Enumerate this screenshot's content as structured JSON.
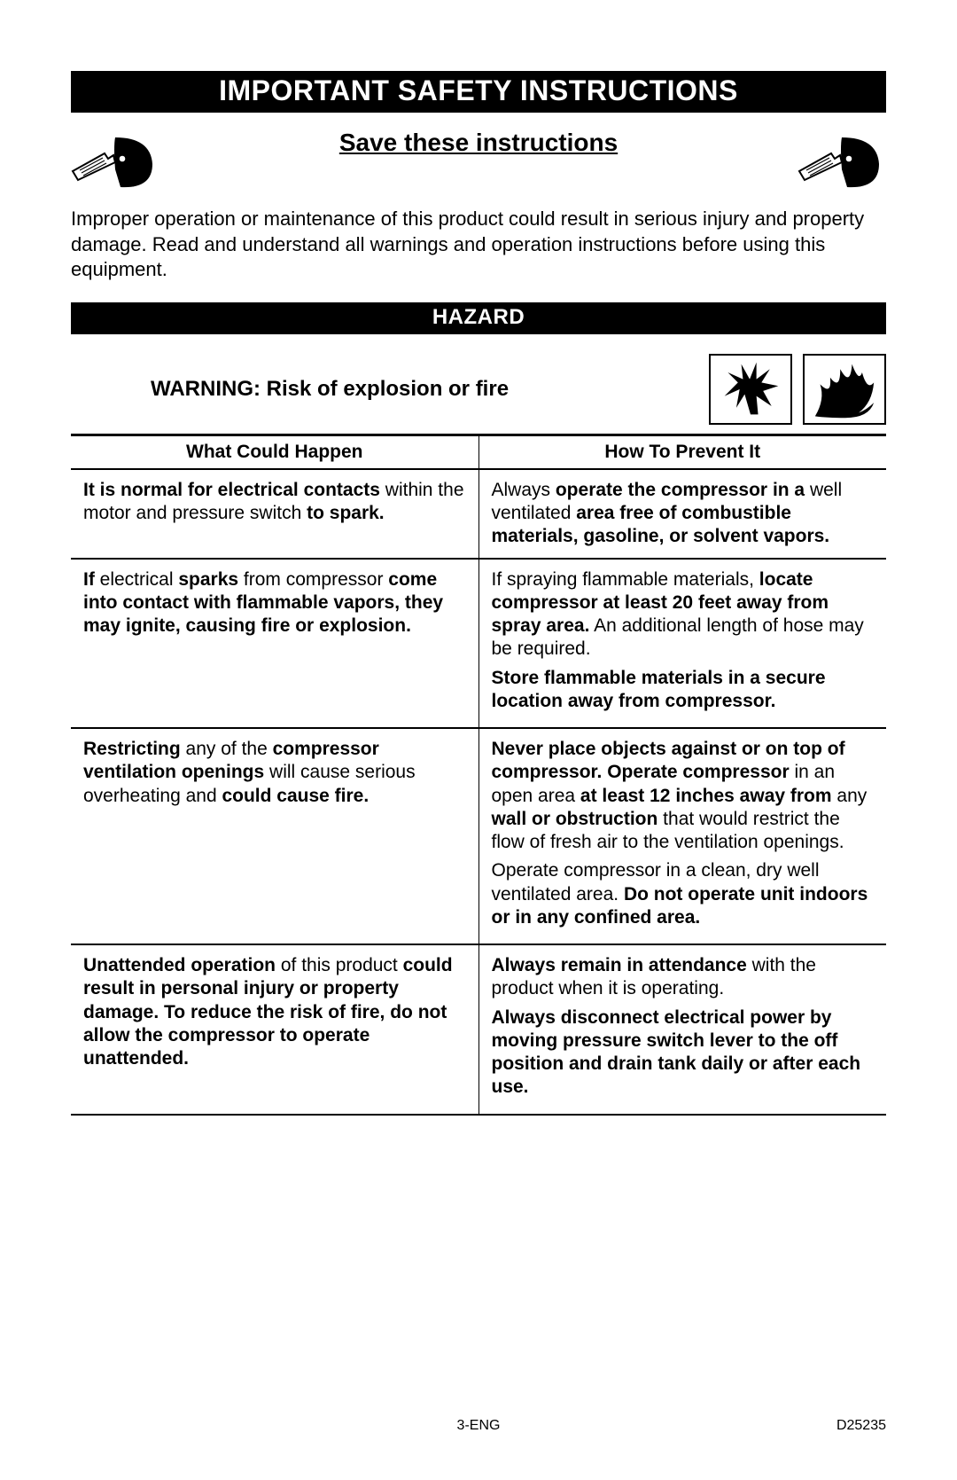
{
  "colors": {
    "bg": "#ffffff",
    "text": "#000000",
    "bar_bg": "#000000",
    "bar_text": "#ffffff",
    "border": "#000000"
  },
  "typography": {
    "title_fontsize": 32,
    "subtitle_fontsize": 28,
    "hazard_bar_fontsize": 24,
    "warning_fontsize": 24,
    "body_fontsize": 22,
    "table_fontsize": 21,
    "footer_fontsize": 16,
    "font_family": "Arial"
  },
  "title": "IMPORTANT SAFETY INSTRUCTIONS",
  "subtitle": "Save these instructions",
  "icons": {
    "read_manual": "read-manual-icon",
    "explosion": "explosion-icon",
    "fire": "fire-icon"
  },
  "intro": "Improper operation or maintenance of this product could result in serious injury and property damage. Read and understand all warnings and operation instructions before using this equipment.",
  "hazard_bar": "HAZARD",
  "warning_heading": "WARNING: Risk of explosion or fire",
  "table": {
    "columns": [
      "What Could Happen",
      "How To Prevent It"
    ],
    "column_widths_pct": [
      50,
      50
    ],
    "rows": [
      {
        "left_html": "<span class='b'>It is normal for electrical contacts</span> within the motor and pressure switch <span class='b'>to spark.</span>",
        "right_html": "Always <span class='b'>operate the compressor in a</span> well ventilated <span class='b'>area free of combustible materials, gasoline, or solvent vapors.</span>"
      },
      {
        "left_html": "<span class='b'>If</span> electrical <span class='b'>sparks</span> from compressor <span class='b'>come into contact with flammable vapors, they may ignite, causing fire or explosion.</span>",
        "right_html": "<p class='para'>If spraying flammable materials, <span class='b'>locate compressor at least 20 feet away from spray area.</span> An additional length of hose may be required.</p><p class='para'><span class='b'>Store flammable materials in a secure location away from compressor.</span></p>"
      },
      {
        "left_html": "<span class='b'>Restricting</span> any of the <span class='b'>compressor ventilation openings</span> will cause serious overheating and <span class='b'>could cause fire.</span>",
        "right_html": "<p class='para'><span class='b'>Never place objects against or on top of compressor. Operate compressor</span> in an open area <span class='b'>at least 12 inches away from</span> any <span class='b'>wall or obstruction</span> that would restrict the flow of fresh air to  the ventilation openings.</p><p class='para'>Operate compressor in a clean, dry well ventilated area. <span class='b'>Do not operate unit indoors or in any confined area.</span></p>"
      },
      {
        "left_html": "<span class='b'>Unattended operation</span> of this product <span class='b'>could result in personal injury or property damage. To reduce the risk of fire, do not allow the compressor to operate unattended.</span>",
        "right_html": "<p class='para'><span class='b'>Always remain in attendance</span> with the product when it is operating.</p><p class='para'><span class='b'>Always disconnect electrical power by moving pressure switch lever to the off position and drain tank daily or after each use.</span></p>"
      }
    ]
  },
  "footer": {
    "center": "3-ENG",
    "right": "D25235"
  }
}
